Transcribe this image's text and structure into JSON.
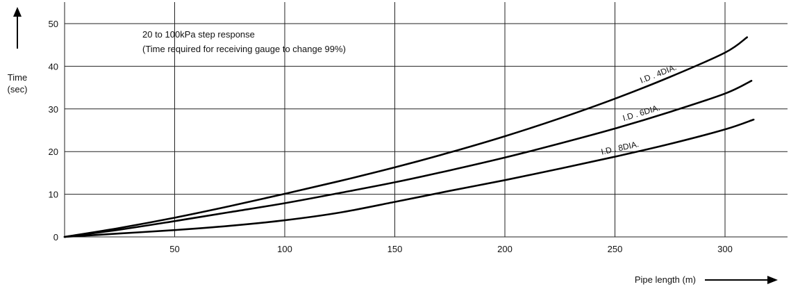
{
  "chart_data": {
    "type": "line",
    "xlabel": "Pipe length (m)",
    "ylabel": [
      "Time",
      "(sec)"
    ],
    "annotations": [
      "20 to 100kPa step response",
      "(Time required for receiving gauge to change 99%)"
    ],
    "xlim": [
      0,
      330
    ],
    "ylim": [
      0,
      50
    ],
    "x_ticks": [
      50,
      100,
      150,
      200,
      250,
      300
    ],
    "y_ticks": [
      0,
      10,
      20,
      30,
      40,
      50
    ],
    "grid": true,
    "series": [
      {
        "name": "I.D . 4DIA.",
        "x": [
          0,
          25,
          50,
          75,
          100,
          125,
          150,
          175,
          200,
          225,
          250,
          275,
          300,
          310
        ],
        "y": [
          0,
          2.1,
          4.5,
          7.2,
          10.1,
          13.1,
          16.3,
          19.8,
          23.6,
          27.8,
          32.4,
          37.5,
          43.2,
          46.8
        ]
      },
      {
        "name": "I.D . 6DIA.",
        "x": [
          0,
          25,
          50,
          75,
          100,
          125,
          150,
          175,
          200,
          225,
          250,
          275,
          300,
          312
        ],
        "y": [
          0,
          1.7,
          3.7,
          5.8,
          7.9,
          10.3,
          12.8,
          15.6,
          18.6,
          21.9,
          25.4,
          29.3,
          33.6,
          36.6
        ]
      },
      {
        "name": "I.D . 8DIA.",
        "x": [
          0,
          25,
          50,
          75,
          100,
          125,
          150,
          175,
          200,
          225,
          250,
          275,
          300,
          313
        ],
        "y": [
          0,
          0.8,
          1.6,
          2.6,
          3.9,
          5.7,
          8.2,
          10.8,
          13.3,
          16.0,
          18.8,
          21.8,
          25.2,
          27.5
        ]
      }
    ],
    "colors": {
      "line": "#000000",
      "grid": "#222222"
    }
  }
}
